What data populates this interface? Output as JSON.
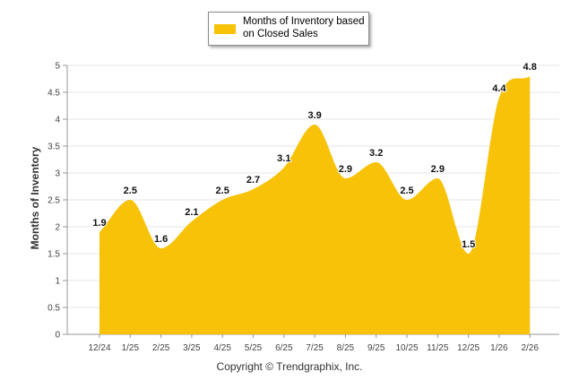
{
  "chart_data": {
    "type": "area",
    "title": "",
    "xlabel": "",
    "ylabel": "Months of Inventory",
    "ylim": [
      0,
      5
    ],
    "yticks": [
      "0",
      "0.5",
      "1",
      "1.5",
      "2",
      "2.5",
      "3",
      "3.5",
      "4",
      "4.5",
      "5"
    ],
    "grid": true,
    "legend_position": "top-center",
    "categories": [
      "12/24",
      "1/25",
      "2/25",
      "3/25",
      "4/25",
      "5/25",
      "6/25",
      "7/25",
      "8/25",
      "9/25",
      "10/25",
      "11/25",
      "12/25",
      "1/26",
      "2/26"
    ],
    "series": [
      {
        "name": "Months of Inventory based on Closed Sales",
        "color": "#f7c207",
        "values": [
          1.9,
          2.5,
          1.6,
          2.1,
          2.5,
          2.7,
          3.1,
          3.9,
          2.9,
          3.2,
          2.5,
          2.9,
          1.5,
          4.4,
          4.8
        ],
        "labels": [
          "1.9",
          "2.5",
          "1.6",
          "2.1",
          "2.5",
          "2.7",
          "3.1",
          "3.9",
          "2.9",
          "3.2",
          "2.5",
          "2.9",
          "1.5",
          "4.4",
          "4.8"
        ]
      }
    ]
  },
  "legend": {
    "label": "Months of Inventory based on Closed Sales"
  },
  "footer": {
    "copyright": "Copyright © Trendgraphix, Inc."
  }
}
